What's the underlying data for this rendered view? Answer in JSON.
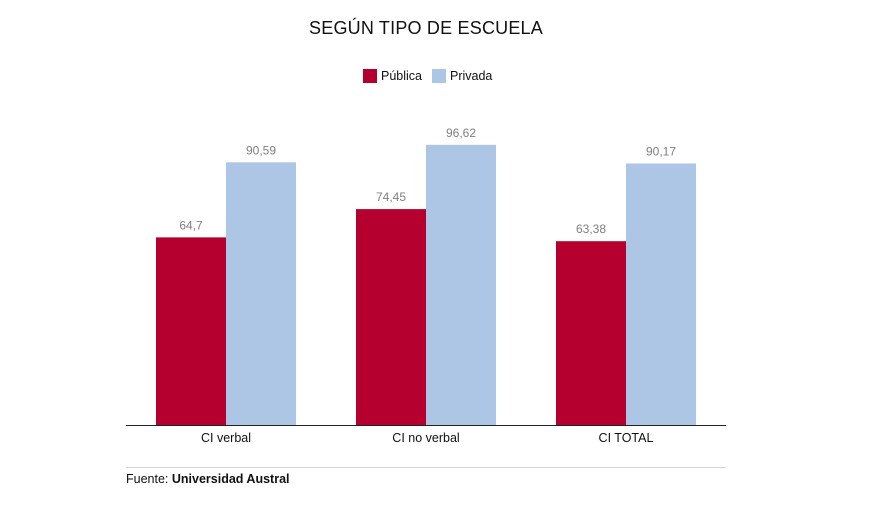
{
  "chart_data": {
    "type": "bar",
    "title": "SEGÚN TIPO DE ESCUELA",
    "categories": [
      "CI verbal",
      "CI no verbal",
      "CI TOTAL"
    ],
    "series": [
      {
        "name": "Pública",
        "color": "#b5002f",
        "values": [
          64.7,
          74.45,
          63.38
        ],
        "labels": [
          "64,7",
          "74,45",
          "63,38"
        ]
      },
      {
        "name": "Privada",
        "color": "#aec6e5",
        "values": [
          90.59,
          96.62,
          90.17
        ],
        "labels": [
          "90,59",
          "96,62",
          "90,17"
        ]
      }
    ],
    "ylim": [
      0,
      100
    ],
    "grid": false,
    "legend_position": "top-center",
    "data_label_color": "#7f7f7f",
    "axis_color": "#222222"
  },
  "source": {
    "prefix": "Fuente: ",
    "name": "Universidad Austral"
  }
}
